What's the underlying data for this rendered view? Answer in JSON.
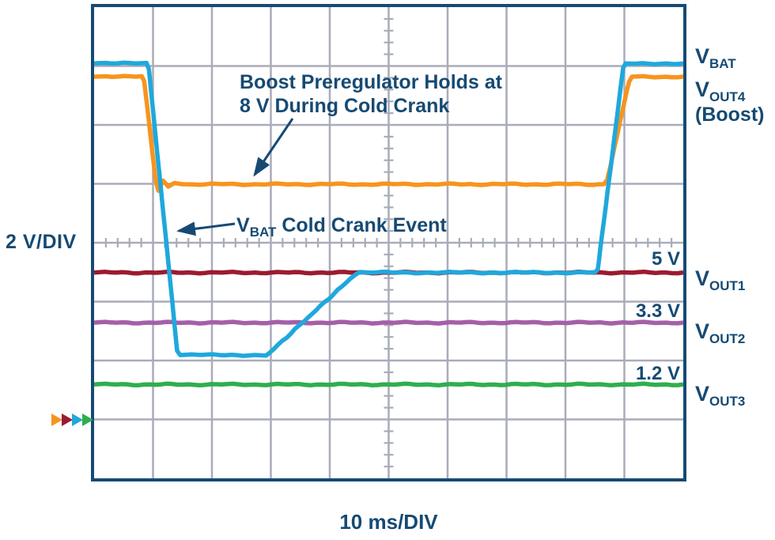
{
  "figure": {
    "left_axis_label": "2 V/DIV",
    "bottom_axis_label": "10 ms/DIV"
  },
  "annotations": {
    "boost_line1": "Boost Preregulator Holds at",
    "boost_line2": "8 V During Cold Crank",
    "event_v": "V",
    "event_sub": "BAT",
    "event_rest": " Cold Crank Event"
  },
  "value_labels": {
    "vout1": "5 V",
    "vout2": "3.3 V",
    "vout3": "1.2 V"
  },
  "channel_labels": {
    "vbat": {
      "main": "V",
      "sub": "BAT"
    },
    "vout4": {
      "main": "V",
      "sub": "OUT4",
      "extra": "(Boost)"
    },
    "vout1": {
      "main": "V",
      "sub": "OUT1"
    },
    "vout2": {
      "main": "V",
      "sub": "OUT2"
    },
    "vout3": {
      "main": "V",
      "sub": "OUT3"
    }
  },
  "colors": {
    "navy": "#164a73",
    "grid": "#a9acb9",
    "cyan": "#1fa8dc",
    "orange": "#f7941e",
    "maroon": "#9b1b30",
    "purple": "#a55fa8",
    "green": "#2fae4d"
  },
  "chart_data": {
    "type": "line",
    "title": "",
    "x_unit": "ms",
    "y_unit": "V",
    "time_per_div_ms": 10,
    "volts_per_div": 2,
    "divisions_x": 10,
    "divisions_y": 8,
    "x_range_ms": [
      0,
      100
    ],
    "grid": "oscilloscope graticule with minor ticks on center lines",
    "series": [
      {
        "name": "V_OUT1",
        "color_key": "maroon",
        "label": "5 V",
        "points": [
          [
            0,
            5
          ],
          [
            100,
            5
          ]
        ]
      },
      {
        "name": "V_OUT2",
        "color_key": "purple",
        "label": "3.3 V",
        "points": [
          [
            0,
            3.3
          ],
          [
            100,
            3.3
          ]
        ]
      },
      {
        "name": "V_OUT3",
        "color_key": "green",
        "label": "1.2 V",
        "points": [
          [
            0,
            1.2
          ],
          [
            100,
            1.2
          ]
        ]
      },
      {
        "name": "V_OUT4_Boost",
        "color_key": "orange",
        "label": "holds 8 V during cold crank",
        "points": [
          [
            0,
            11.65
          ],
          [
            8.1,
            11.65
          ],
          [
            8.5,
            11.5
          ],
          [
            10.4,
            8.2
          ],
          [
            10.9,
            7.78
          ],
          [
            11.7,
            8.12
          ],
          [
            12.6,
            7.92
          ],
          [
            13.6,
            8.04
          ],
          [
            15,
            8.0
          ],
          [
            86.5,
            8.0
          ],
          [
            87.1,
            8.15
          ],
          [
            90.8,
            11.5
          ],
          [
            91.3,
            11.65
          ],
          [
            100,
            11.65
          ]
        ]
      },
      {
        "name": "V_BAT",
        "color_key": "cyan",
        "label": "cold crank event 12 V → 2.2 V → 5 V → 12 V",
        "points": [
          [
            0,
            12.1
          ],
          [
            8.9,
            12.1
          ],
          [
            9.3,
            11.9
          ],
          [
            14.1,
            2.35
          ],
          [
            14.6,
            2.2
          ],
          [
            29.2,
            2.2
          ],
          [
            29.8,
            2.28
          ],
          [
            44.2,
            4.92
          ],
          [
            44.9,
            5.0
          ],
          [
            85.1,
            5.0
          ],
          [
            85.5,
            5.12
          ],
          [
            89.8,
            11.95
          ],
          [
            90.2,
            12.1
          ],
          [
            100,
            12.1
          ]
        ]
      }
    ],
    "ground_markers": [
      "orange",
      "maroon",
      "cyan",
      "green"
    ]
  }
}
